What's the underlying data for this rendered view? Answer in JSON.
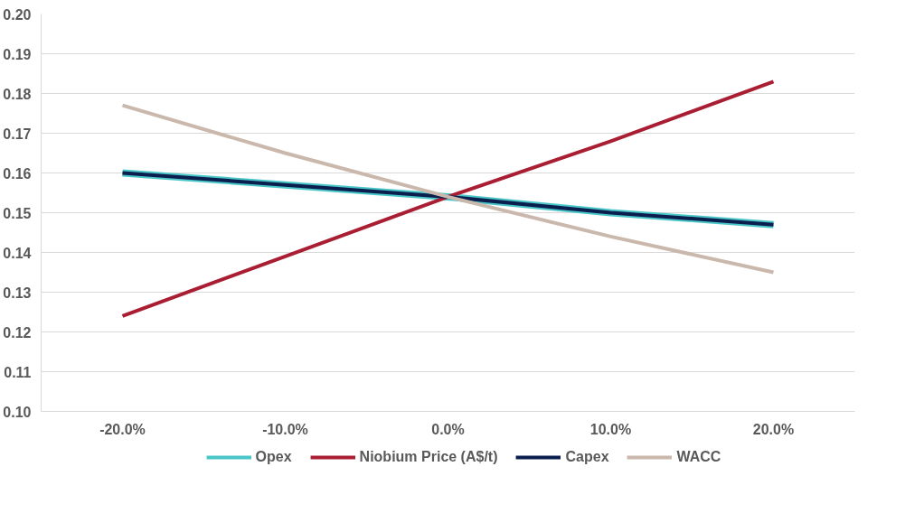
{
  "chart_data": {
    "type": "line",
    "categories": [
      "-20.0%",
      "-10.0%",
      "0.0%",
      "10.0%",
      "20.0%"
    ],
    "series": [
      {
        "name": "Opex",
        "color": "#4bc6c8",
        "values": [
          0.16,
          0.157,
          0.154,
          0.15,
          0.147
        ]
      },
      {
        "name": "Niobium Price (A$/t)",
        "color": "#a91e32",
        "values": [
          0.124,
          0.139,
          0.154,
          0.168,
          0.183
        ]
      },
      {
        "name": "Capex",
        "color": "#0b1f4f",
        "values": [
          0.16,
          0.157,
          0.154,
          0.15,
          0.147
        ]
      },
      {
        "name": "WACC",
        "color": "#c9b8ab",
        "values": [
          0.177,
          0.165,
          0.154,
          0.144,
          0.135
        ]
      }
    ],
    "ylim": [
      0.1,
      0.2
    ],
    "yticks": [
      {
        "value": 0.1,
        "label": "0.10"
      },
      {
        "value": 0.11,
        "label": "0.11"
      },
      {
        "value": 0.12,
        "label": "0.12"
      },
      {
        "value": 0.13,
        "label": "0.13"
      },
      {
        "value": 0.14,
        "label": "0.14"
      },
      {
        "value": 0.15,
        "label": "0.15"
      },
      {
        "value": 0.16,
        "label": "0.16"
      },
      {
        "value": 0.17,
        "label": "0.17"
      },
      {
        "value": 0.18,
        "label": "0.18"
      },
      {
        "value": 0.19,
        "label": "0.19"
      },
      {
        "value": 0.2,
        "label": "0.20"
      }
    ],
    "grid": "y",
    "legend": "bottom",
    "marker": "none",
    "line_style": "solid"
  }
}
